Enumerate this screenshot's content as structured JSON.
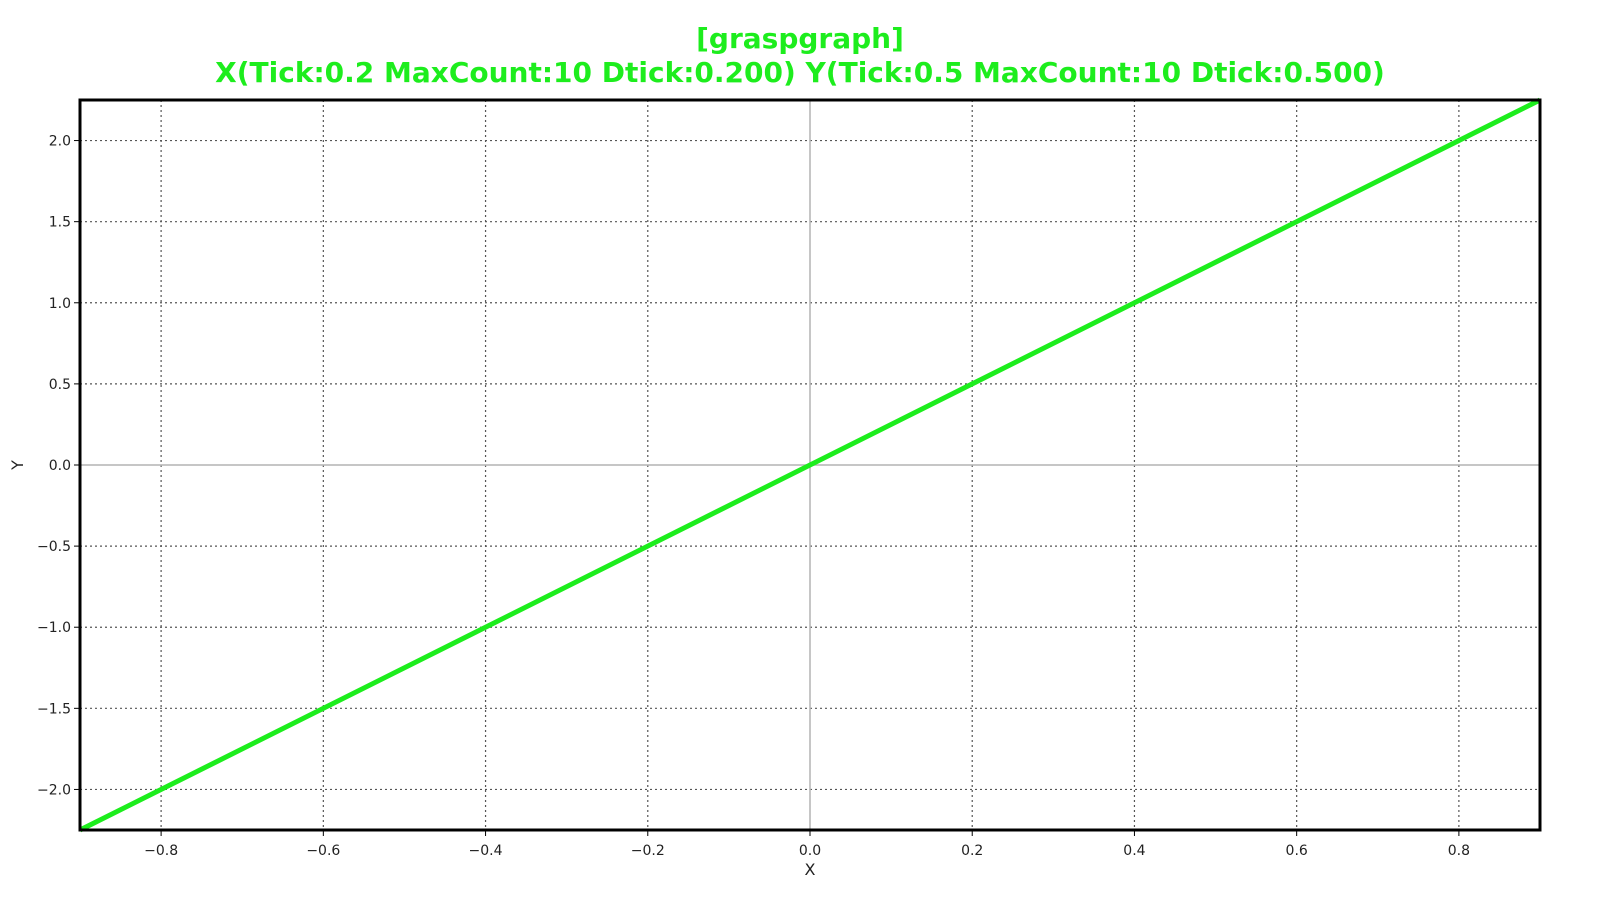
{
  "chart_data": {
    "type": "line",
    "title": "[graspgraph]",
    "subtitle": "X(Tick:0.2 MaxCount:10 Dtick:0.200) Y(Tick:0.5 MaxCount:10 Dtick:0.500)",
    "xlabel": "X",
    "ylabel": "Y",
    "xlim": [
      -0.9,
      0.9
    ],
    "ylim": [
      -2.25,
      2.25
    ],
    "x_ticks": [
      -0.8,
      -0.6,
      -0.4,
      -0.2,
      0.0,
      0.2,
      0.4,
      0.6,
      0.8
    ],
    "x_tick_labels": [
      "−0.8",
      "−0.6",
      "−0.4",
      "−0.2",
      "0.0",
      "0.2",
      "0.4",
      "0.6",
      "0.8"
    ],
    "y_ticks": [
      2.0,
      1.5,
      1.0,
      0.5,
      0.0,
      -0.5,
      -1.0,
      -1.5,
      -2.0
    ],
    "y_tick_labels": [
      "2.0",
      "1.5",
      "1.0",
      "0.5",
      "0.0",
      "−0.5",
      "−1.0",
      "−1.5",
      "−2.0"
    ],
    "grid": true,
    "series": [
      {
        "color": "#1ded1d",
        "x": [
          -0.9,
          0.9
        ],
        "y": [
          -2.25,
          2.25
        ]
      }
    ]
  }
}
